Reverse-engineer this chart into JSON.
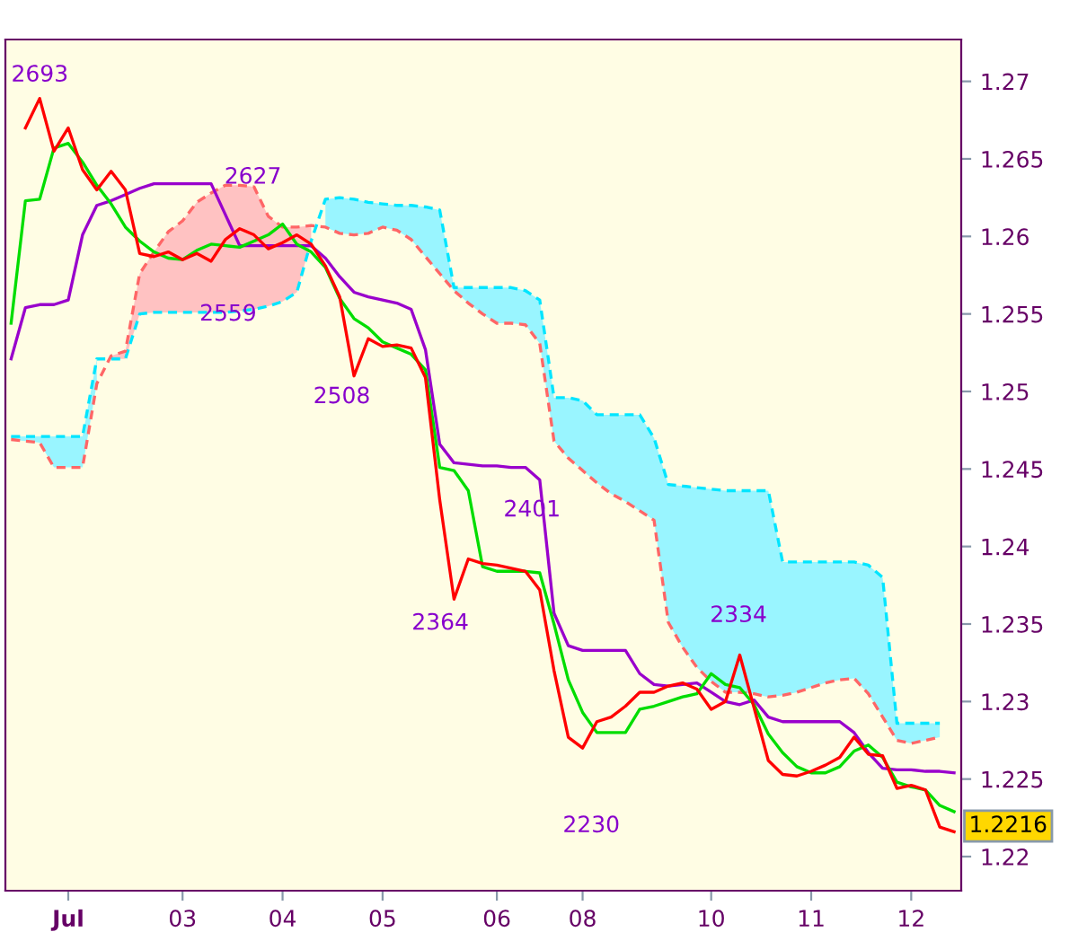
{
  "chart_data": {
    "type": "line",
    "categories": [
      null,
      null,
      null,
      null,
      "Jul",
      null,
      null,
      null,
      null,
      null,
      null,
      null,
      "03",
      null,
      null,
      null,
      null,
      null,
      null,
      "04",
      null,
      null,
      null,
      null,
      null,
      null,
      "05",
      null,
      null,
      null,
      null,
      null,
      null,
      null,
      "06",
      null,
      null,
      null,
      null,
      null,
      "08",
      null,
      null,
      null,
      null,
      null,
      null,
      null,
      null,
      "10",
      null,
      null,
      null,
      null,
      null,
      null,
      "11",
      null,
      null,
      null,
      null,
      null,
      null,
      "12",
      null,
      null,
      null
    ],
    "ylim": [
      1.2178,
      1.2727
    ],
    "yticks": [
      1.22,
      1.225,
      1.23,
      1.235,
      1.24,
      1.245,
      1.25,
      1.255,
      1.26,
      1.265,
      1.27
    ],
    "grid": false,
    "marker": "none",
    "series": [
      {
        "color": "#00e5ff",
        "line_style": "dashed",
        "values": [
          1.2471,
          1.2471,
          1.2471,
          1.2471,
          1.2471,
          1.2471,
          1.2521,
          1.2521,
          1.2521,
          1.255,
          1.2551,
          1.2551,
          1.2551,
          1.2551,
          1.2551,
          1.2551,
          1.2552,
          1.2553,
          1.2555,
          1.2558,
          1.2564,
          1.2597,
          1.2624,
          1.2625,
          1.2624,
          1.2622,
          1.2621,
          1.262,
          1.262,
          1.2619,
          1.2617,
          1.2567,
          1.2567,
          1.2567,
          1.2567,
          1.2567,
          1.2565,
          1.2559,
          1.2496,
          1.2496,
          1.2494,
          1.2485,
          1.2485,
          1.2485,
          1.2485,
          1.247,
          1.244,
          1.2439,
          1.2438,
          1.2437,
          1.2436,
          1.2436,
          1.2436,
          1.2436,
          1.239,
          1.239,
          1.239,
          1.239,
          1.239,
          1.239,
          1.2388,
          1.238,
          1.2286,
          1.2286,
          1.2286,
          1.2286,
          null
        ],
        "upper": [
          1.2471,
          1.2471,
          1.2471,
          1.2471,
          1.2471,
          1.2471,
          1.2521,
          null,
          null,
          null,
          null,
          null,
          null,
          null,
          null,
          null,
          null,
          null,
          null,
          null,
          null,
          null,
          1.2624,
          1.2625,
          1.2624,
          1.2622,
          1.2621,
          1.262,
          1.262,
          1.2619,
          1.2617,
          1.2567,
          1.2567,
          1.2567,
          1.2567,
          1.2567,
          1.2565,
          1.2559,
          1.2496,
          1.2496,
          1.2494,
          1.2485,
          1.2485,
          1.2485,
          1.2485,
          1.247,
          1.244,
          1.2439,
          1.2438,
          1.2437,
          1.2436,
          1.2436,
          1.2436,
          1.2436,
          1.239,
          1.239,
          1.239,
          1.239,
          1.239,
          1.239,
          1.2388,
          1.238,
          1.2286,
          1.2286,
          1.2286,
          1.2286,
          null
        ],
        "lower": [
          1.2469,
          1.2468,
          1.2467,
          1.2451,
          1.2451,
          1.2451,
          1.2505,
          null,
          null,
          null,
          null,
          null,
          null,
          null,
          null,
          null,
          null,
          null,
          null,
          null,
          null,
          null,
          1.2606,
          1.2602,
          1.2601,
          1.2602,
          1.2606,
          1.2604,
          1.2598,
          1.2587,
          1.2576,
          1.2565,
          1.2557,
          1.255,
          1.2544,
          1.2544,
          1.2543,
          1.2531,
          1.2468,
          1.2457,
          1.2449,
          1.2441,
          1.2434,
          1.2429,
          1.2423,
          1.2417,
          1.2351,
          1.2335,
          1.2322,
          1.2313,
          1.2306,
          1.2306,
          1.2305,
          1.2303,
          1.2304,
          1.2306,
          1.2309,
          1.2312,
          1.2314,
          1.2315,
          1.2305,
          1.229,
          1.2275,
          1.2273,
          1.2275,
          1.2277,
          null
        ]
      },
      {
        "color": "#ff6666",
        "line_style": "dashed",
        "values": [
          1.2469,
          1.2468,
          1.2467,
          1.2451,
          1.2451,
          1.2451,
          1.2505,
          1.2523,
          1.2526,
          1.2576,
          1.259,
          1.2603,
          1.261,
          1.2622,
          1.2628,
          1.2633,
          1.2633,
          1.2632,
          1.2613,
          1.2606,
          1.2606,
          1.2607,
          1.2606,
          1.2602,
          1.2601,
          1.2602,
          1.2606,
          1.2604,
          1.2598,
          1.2587,
          1.2576,
          1.2565,
          1.2557,
          1.255,
          1.2544,
          1.2544,
          1.2543,
          1.2531,
          1.2468,
          1.2457,
          1.2449,
          1.2441,
          1.2434,
          1.2429,
          1.2423,
          1.2417,
          1.2351,
          1.2335,
          1.2322,
          1.2313,
          1.2306,
          1.2306,
          1.2305,
          1.2303,
          1.2304,
          1.2306,
          1.2309,
          1.2312,
          1.2314,
          1.2315,
          1.2305,
          1.229,
          1.2275,
          1.2273,
          1.2275,
          1.2277,
          null
        ],
        "upper": [
          null,
          null,
          null,
          null,
          null,
          null,
          null,
          1.2523,
          1.2526,
          1.2576,
          1.259,
          1.2603,
          1.261,
          1.2622,
          1.2628,
          1.2633,
          1.2633,
          1.2632,
          1.2613,
          1.2606,
          1.2606,
          1.2607,
          null,
          null,
          null,
          null,
          null,
          null,
          null,
          null,
          null,
          null,
          null,
          null,
          null,
          null,
          null,
          null,
          null,
          null,
          null,
          null,
          null,
          null,
          null,
          null,
          null,
          null,
          null,
          null,
          null,
          null,
          null,
          null,
          null,
          null,
          null,
          null,
          null,
          null,
          null,
          null,
          null,
          null,
          null,
          null,
          null
        ],
        "lower": [
          null,
          null,
          null,
          null,
          null,
          null,
          null,
          1.2521,
          1.2521,
          1.255,
          1.2551,
          1.2551,
          1.2551,
          1.2551,
          1.2551,
          1.2551,
          1.2552,
          1.2553,
          1.2555,
          1.2558,
          1.2564,
          1.2597,
          null,
          null,
          null,
          null,
          null,
          null,
          null,
          null,
          null,
          null,
          null,
          null,
          null,
          null,
          null,
          null,
          null,
          null,
          null,
          null,
          null,
          null,
          null,
          null,
          null,
          null,
          null,
          null,
          null,
          null,
          null,
          null,
          null,
          null,
          null,
          null,
          null,
          null,
          null,
          null,
          null,
          null,
          null,
          null,
          null
        ]
      },
      {
        "color": "#9900cc",
        "values": [
          1.2521,
          1.2554,
          1.2556,
          1.2556,
          1.2559,
          1.2601,
          1.262,
          1.2623,
          1.2627,
          1.2631,
          1.2634,
          1.2634,
          1.2634,
          1.2634,
          1.2634,
          1.2614,
          1.2594,
          1.2594,
          1.2594,
          1.2594,
          1.2594,
          1.2594,
          1.2586,
          1.2574,
          1.2564,
          1.2561,
          1.2559,
          1.2557,
          1.2553,
          1.2527,
          1.2466,
          1.2454,
          1.2453,
          1.2452,
          1.2452,
          1.2451,
          1.2451,
          1.2443,
          1.2357,
          1.2336,
          1.2333,
          1.2333,
          1.2333,
          1.2333,
          1.2318,
          1.2311,
          1.231,
          1.2311,
          1.2312,
          1.2306,
          1.23,
          1.2298,
          1.2301,
          1.229,
          1.2287,
          1.2287,
          1.2287,
          1.2287,
          1.2287,
          1.228,
          1.2267,
          1.2257,
          1.2256,
          1.2256,
          1.2255,
          1.2255,
          1.2254
        ]
      },
      {
        "color": "#00dd00",
        "values": [
          1.2544,
          1.2623,
          1.2624,
          1.2657,
          1.266,
          1.2648,
          1.2633,
          1.2621,
          1.2606,
          1.2597,
          1.259,
          1.2586,
          1.2585,
          1.2591,
          1.2595,
          1.2594,
          1.2593,
          1.2597,
          1.2601,
          1.2608,
          1.2595,
          1.259,
          1.258,
          1.256,
          1.2547,
          1.2541,
          1.2532,
          1.2528,
          1.2524,
          1.2514,
          1.2451,
          1.2449,
          1.2436,
          1.2387,
          1.2384,
          1.2384,
          1.2384,
          1.2383,
          1.235,
          1.2314,
          1.2293,
          1.228,
          1.228,
          1.228,
          1.2295,
          1.2297,
          1.23,
          1.2303,
          1.2305,
          1.2318,
          1.2311,
          1.2309,
          1.2298,
          1.2279,
          1.2267,
          1.2258,
          1.2254,
          1.2254,
          1.2258,
          1.2268,
          1.2272,
          1.2264,
          1.2248,
          1.2245,
          1.2243,
          1.2233,
          1.2229
        ]
      },
      {
        "color": "#ff0000",
        "values": [
          null,
          1.267,
          1.2689,
          1.2655,
          1.267,
          1.2643,
          1.263,
          1.2642,
          1.263,
          1.2589,
          1.2587,
          1.259,
          1.2585,
          1.2589,
          1.2584,
          1.2598,
          1.2605,
          1.2601,
          1.2592,
          1.2596,
          1.2601,
          1.2595,
          1.2581,
          1.2561,
          1.251,
          1.2534,
          1.2529,
          1.253,
          1.2528,
          1.2509,
          1.243,
          1.2366,
          1.2392,
          1.2389,
          1.2388,
          1.2386,
          1.2384,
          1.2372,
          1.232,
          1.2277,
          1.227,
          1.2287,
          1.229,
          1.2297,
          1.2306,
          1.2306,
          1.231,
          1.2312,
          1.2308,
          1.2295,
          1.23,
          1.233,
          1.2296,
          1.2262,
          1.2253,
          1.2252,
          1.2255,
          1.2259,
          1.2264,
          1.2277,
          1.2266,
          1.2265,
          1.2244,
          1.2246,
          1.2243,
          1.2219,
          1.2216
        ]
      }
    ],
    "annotations": [
      "2693",
      "2627",
      "2559",
      "2508",
      "2401",
      "2364",
      "2334",
      "2230",
      "1.2216"
    ]
  }
}
